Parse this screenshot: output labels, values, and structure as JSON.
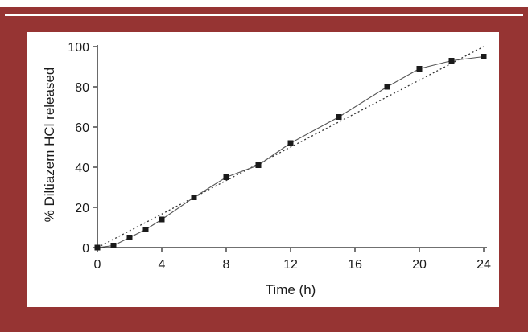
{
  "chart_data": {
    "type": "line",
    "xlabel": "Time (h)",
    "ylabel": "% Diltiazem HCl released",
    "xlim": [
      0,
      24
    ],
    "ylim": [
      0,
      100
    ],
    "xticks": [
      0,
      4,
      8,
      12,
      16,
      20,
      24
    ],
    "yticks": [
      0,
      20,
      40,
      60,
      80,
      100
    ],
    "grid": false,
    "series": [
      {
        "style": "solid line with square markers",
        "x": [
          0,
          1,
          2,
          3,
          4,
          6,
          8,
          10,
          12,
          15,
          18,
          20,
          22,
          24
        ],
        "y": [
          0,
          1,
          5,
          9,
          14,
          25,
          35,
          41,
          52,
          65,
          80,
          89,
          93,
          95
        ]
      },
      {
        "style": "dotted reference line",
        "x": [
          0,
          24
        ],
        "y": [
          0,
          100
        ]
      }
    ]
  },
  "colors": {
    "frame": "#963433",
    "panel": "#ffffff",
    "ink": "#1a1a1a"
  }
}
